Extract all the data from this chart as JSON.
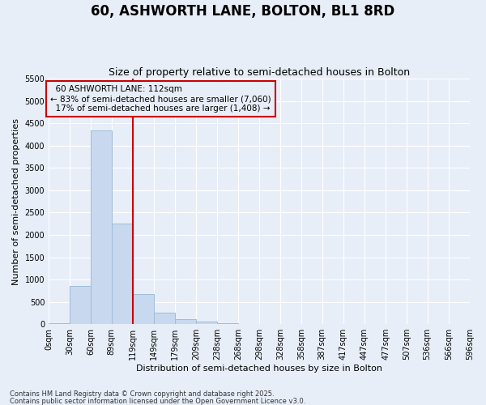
{
  "title": "60, ASHWORTH LANE, BOLTON, BL1 8RD",
  "subtitle": "Size of property relative to semi-detached houses in Bolton",
  "xlabel": "Distribution of semi-detached houses by size in Bolton",
  "ylabel": "Number of semi-detached properties",
  "footnote1": "Contains HM Land Registry data © Crown copyright and database right 2025.",
  "footnote2": "Contains public sector information licensed under the Open Government Licence v3.0.",
  "property_label": "60 ASHWORTH LANE: 112sqm",
  "pct_smaller": 83,
  "count_smaller": 7060,
  "pct_larger": 17,
  "count_larger": 1408,
  "bin_edges": [
    0,
    30,
    60,
    89,
    119,
    149,
    179,
    209,
    238,
    268,
    298,
    328,
    358,
    387,
    417,
    447,
    477,
    507,
    536,
    566,
    596
  ],
  "bin_labels": [
    "0sqm",
    "30sqm",
    "60sqm",
    "89sqm",
    "119sqm",
    "149sqm",
    "179sqm",
    "209sqm",
    "238sqm",
    "268sqm",
    "298sqm",
    "328sqm",
    "358sqm",
    "387sqm",
    "417sqm",
    "447sqm",
    "477sqm",
    "507sqm",
    "536sqm",
    "566sqm",
    "596sqm"
  ],
  "counts": [
    20,
    850,
    4350,
    2250,
    670,
    260,
    110,
    50,
    20,
    0,
    0,
    0,
    0,
    0,
    0,
    0,
    0,
    0,
    0,
    0
  ],
  "bar_color": "#c8d8ef",
  "bar_edge_color": "#a0bcd8",
  "vline_color": "#cc0000",
  "vline_x": 119,
  "bg_color": "#e8eef8",
  "grid_color": "#ffffff",
  "ylim": [
    0,
    5500
  ],
  "yticks": [
    0,
    500,
    1000,
    1500,
    2000,
    2500,
    3000,
    3500,
    4000,
    4500,
    5000,
    5500
  ],
  "title_fontsize": 12,
  "subtitle_fontsize": 9,
  "axis_fontsize": 8,
  "tick_fontsize": 7,
  "footnote_fontsize": 6
}
